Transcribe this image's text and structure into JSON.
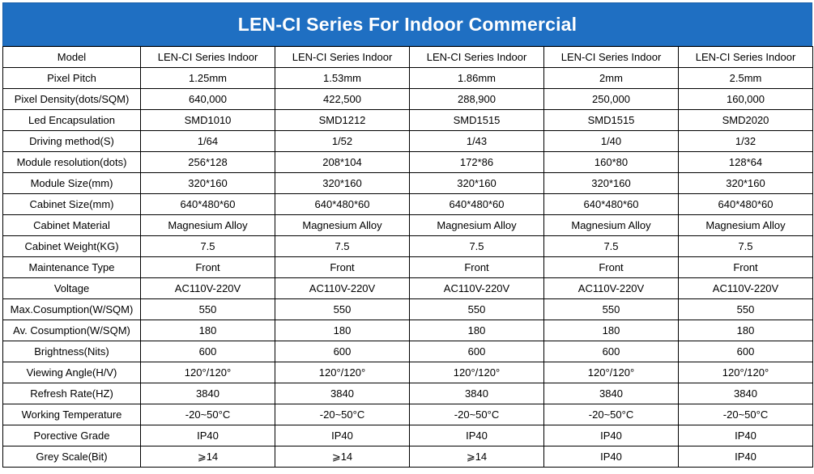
{
  "title": "LEN-CI Series For Indoor Commercial",
  "rows": [
    {
      "label": "Model",
      "values": [
        "LEN-CI  Series Indoor",
        "LEN-CI  Series Indoor",
        "LEN-CI  Series Indoor",
        "LEN-CI  Series Indoor",
        "LEN-CI  Series Indoor"
      ]
    },
    {
      "label": "Pixel Pitch",
      "values": [
        "1.25mm",
        "1.53mm",
        "1.86mm",
        "2mm",
        "2.5mm"
      ]
    },
    {
      "label": "Pixel Density(dots/SQM)",
      "values": [
        "640,000",
        "422,500",
        "288,900",
        "250,000",
        "160,000"
      ]
    },
    {
      "label": "Led Encapsulation",
      "values": [
        "SMD1010",
        "SMD1212",
        "SMD1515",
        "SMD1515",
        "SMD2020"
      ]
    },
    {
      "label": "Driving method(S)",
      "values": [
        "1/64",
        "1/52",
        "1/43",
        "1/40",
        "1/32"
      ]
    },
    {
      "label": "Module resolution(dots)",
      "values": [
        "256*128",
        "208*104",
        "172*86",
        "160*80",
        "128*64"
      ]
    },
    {
      "label": "Module Size(mm)",
      "values": [
        "320*160",
        "320*160",
        "320*160",
        "320*160",
        "320*160"
      ]
    },
    {
      "label": "Cabinet Size(mm)",
      "values": [
        "640*480*60",
        "640*480*60",
        "640*480*60",
        "640*480*60",
        "640*480*60"
      ]
    },
    {
      "label": "Cabinet Material",
      "values": [
        "Magnesium Alloy",
        "Magnesium Alloy",
        "Magnesium Alloy",
        "Magnesium Alloy",
        "Magnesium Alloy"
      ]
    },
    {
      "label": "Cabinet Weight(KG)",
      "values": [
        "7.5",
        "7.5",
        "7.5",
        "7.5",
        "7.5"
      ]
    },
    {
      "label": "Maintenance Type",
      "values": [
        "Front",
        "Front",
        "Front",
        "Front",
        "Front"
      ]
    },
    {
      "label": "Voltage",
      "values": [
        "AC110V-220V",
        "AC110V-220V",
        "AC110V-220V",
        "AC110V-220V",
        "AC110V-220V"
      ]
    },
    {
      "label": "Max.Cosumption(W/SQM)",
      "values": [
        "550",
        "550",
        "550",
        "550",
        "550"
      ]
    },
    {
      "label": "Av. Cosumption(W/SQM)",
      "values": [
        "180",
        "180",
        "180",
        "180",
        "180"
      ]
    },
    {
      "label": "Brightness(Nits)",
      "values": [
        "600",
        "600",
        "600",
        "600",
        "600"
      ]
    },
    {
      "label": "Viewing Angle(H/V)",
      "values": [
        "120°/120°",
        "120°/120°",
        "120°/120°",
        "120°/120°",
        "120°/120°"
      ]
    },
    {
      "label": "Refresh Rate(HZ)",
      "values": [
        "3840",
        "3840",
        "3840",
        "3840",
        "3840"
      ]
    },
    {
      "label": "Working Temperature",
      "values": [
        "-20~50°C",
        "-20~50°C",
        "-20~50°C",
        "-20~50°C",
        "-20~50°C"
      ]
    },
    {
      "label": "Porective Grade",
      "values": [
        "IP40",
        "IP40",
        "IP40",
        "IP40",
        "IP40"
      ]
    },
    {
      "label": "Grey Scale(Bit)",
      "values": [
        "⩾14",
        "⩾14",
        "⩾14",
        "IP40",
        "IP40"
      ]
    }
  ],
  "colors": {
    "title_background": "#1f6fc2",
    "title_text": "#ffffff",
    "grid": "#000000"
  }
}
